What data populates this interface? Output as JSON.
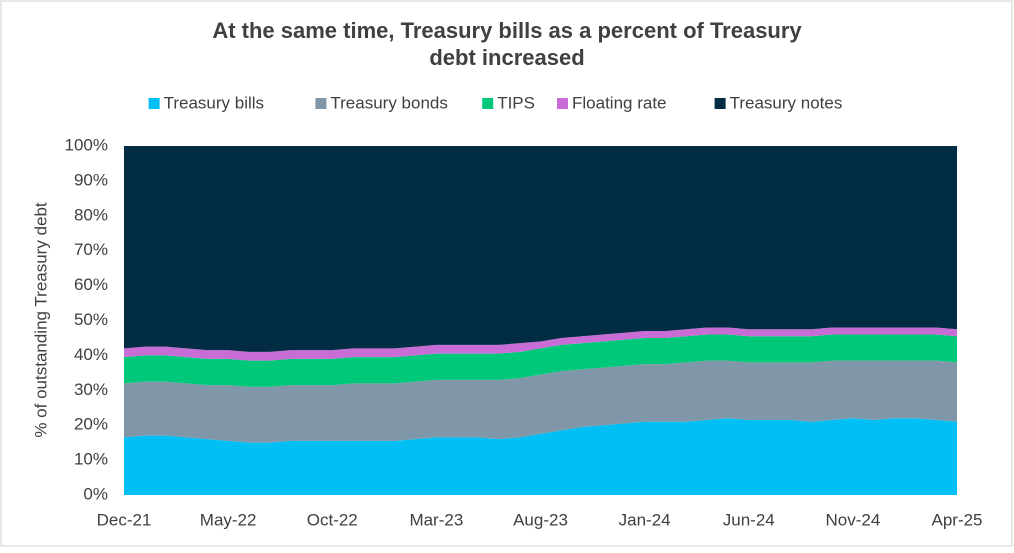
{
  "chart_data": {
    "type": "stacked-area",
    "title": "At the same time, Treasury bills as a percent of Treasury debt increased",
    "y_label": "% of outstanding Treasury debt",
    "categories": [
      "Dec-21",
      null,
      null,
      null,
      null,
      "May-22",
      null,
      null,
      null,
      null,
      "Oct-22",
      null,
      null,
      null,
      null,
      "Mar-23",
      null,
      null,
      null,
      null,
      "Aug-23",
      null,
      null,
      null,
      null,
      "Jan-24",
      null,
      null,
      null,
      null,
      "Jun-24",
      null,
      null,
      null,
      null,
      "Nov-24",
      null,
      null,
      null,
      null,
      "Apr-25"
    ],
    "series": [
      {
        "name": "Treasury bills",
        "color": "#00bff5",
        "values": [
          16.5,
          17,
          17,
          16.5,
          16,
          15.5,
          15,
          15,
          15.5,
          15.5,
          15.5,
          15.5,
          15.5,
          15.5,
          16,
          16.5,
          16.5,
          16.5,
          16,
          16.5,
          17.5,
          18.5,
          19.5,
          20,
          20.5,
          21,
          21,
          21,
          21.5,
          22,
          21.5,
          21.5,
          21.5,
          21,
          21.5,
          22,
          21.5,
          22,
          22,
          21.5,
          21
        ]
      },
      {
        "name": "Treasury bonds",
        "color": "#8097a9",
        "values": [
          15.5,
          15.5,
          15.5,
          15.5,
          15.5,
          16,
          16,
          16,
          16,
          16,
          16,
          16.5,
          16.5,
          16.5,
          16.5,
          16.5,
          16.5,
          16.5,
          17,
          17,
          17,
          17,
          16.5,
          16.5,
          16.5,
          16.5,
          16.5,
          17,
          17,
          16.5,
          16.5,
          16.5,
          16.5,
          17,
          17,
          16.5,
          17,
          16.5,
          16.5,
          17,
          17
        ]
      },
      {
        "name": "TIPS",
        "color": "#00c87a",
        "values": [
          7.5,
          7.5,
          7.5,
          7.5,
          7.5,
          7.5,
          7.5,
          7.5,
          7.5,
          7.5,
          7.5,
          7.5,
          7.5,
          7.5,
          7.5,
          7.5,
          7.5,
          7.5,
          7.5,
          7.5,
          7.5,
          7.5,
          7.5,
          7.5,
          7.5,
          7.5,
          7.5,
          7.5,
          7.5,
          7.5,
          7.5,
          7.5,
          7.5,
          7.5,
          7.5,
          7.5,
          7.5,
          7.5,
          7.5,
          7.5,
          7.5
        ]
      },
      {
        "name": "Floating rate",
        "color": "#c86dd6",
        "values": [
          2.5,
          2.5,
          2.5,
          2.5,
          2.5,
          2.5,
          2.5,
          2.5,
          2.5,
          2.5,
          2.5,
          2.5,
          2.5,
          2.5,
          2.5,
          2.5,
          2.5,
          2.5,
          2.5,
          2.5,
          2,
          2,
          2,
          2,
          2,
          2,
          2,
          2,
          2,
          2,
          2,
          2,
          2,
          2,
          2,
          2,
          2,
          2,
          2,
          2,
          2
        ]
      },
      {
        "name": "Treasury notes",
        "color": "#022b44",
        "values": [
          58,
          57.5,
          57.5,
          58,
          58.5,
          58.5,
          59,
          59,
          58.5,
          58.5,
          58.5,
          58,
          58,
          58,
          57.5,
          57,
          57,
          57,
          57,
          56.5,
          56,
          55,
          54.5,
          54,
          53.5,
          53,
          53,
          52.5,
          52,
          52,
          52.5,
          52.5,
          52.5,
          52.5,
          52,
          52,
          52,
          52,
          52,
          52,
          52.5
        ]
      }
    ],
    "ylim": [
      0,
      100
    ],
    "yticks": [
      {
        "value": 0,
        "label": "0%"
      },
      {
        "value": 10,
        "label": "10%"
      },
      {
        "value": 20,
        "label": "20%"
      },
      {
        "value": 30,
        "label": "30%"
      },
      {
        "value": 40,
        "label": "40%"
      },
      {
        "value": 50,
        "label": "50%"
      },
      {
        "value": 60,
        "label": "60%"
      },
      {
        "value": 70,
        "label": "70%"
      },
      {
        "value": 80,
        "label": "80%"
      },
      {
        "value": 90,
        "label": "90%"
      },
      {
        "value": 100,
        "label": "100%"
      }
    ]
  }
}
